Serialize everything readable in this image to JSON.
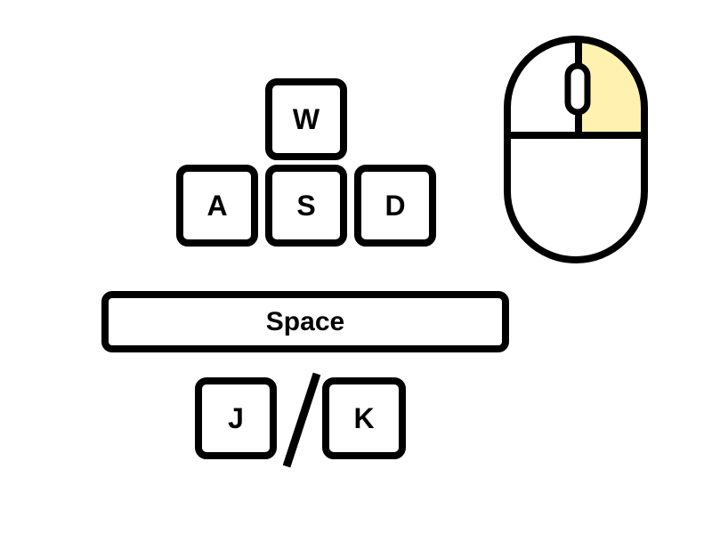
{
  "keys": {
    "w": "W",
    "a": "A",
    "s": "S",
    "d": "D",
    "space": "Space",
    "j": "J",
    "k": "K"
  },
  "mouse": {
    "highlighted_button": "right",
    "highlight_color": "#fff2b0",
    "outline_color": "#000000"
  }
}
